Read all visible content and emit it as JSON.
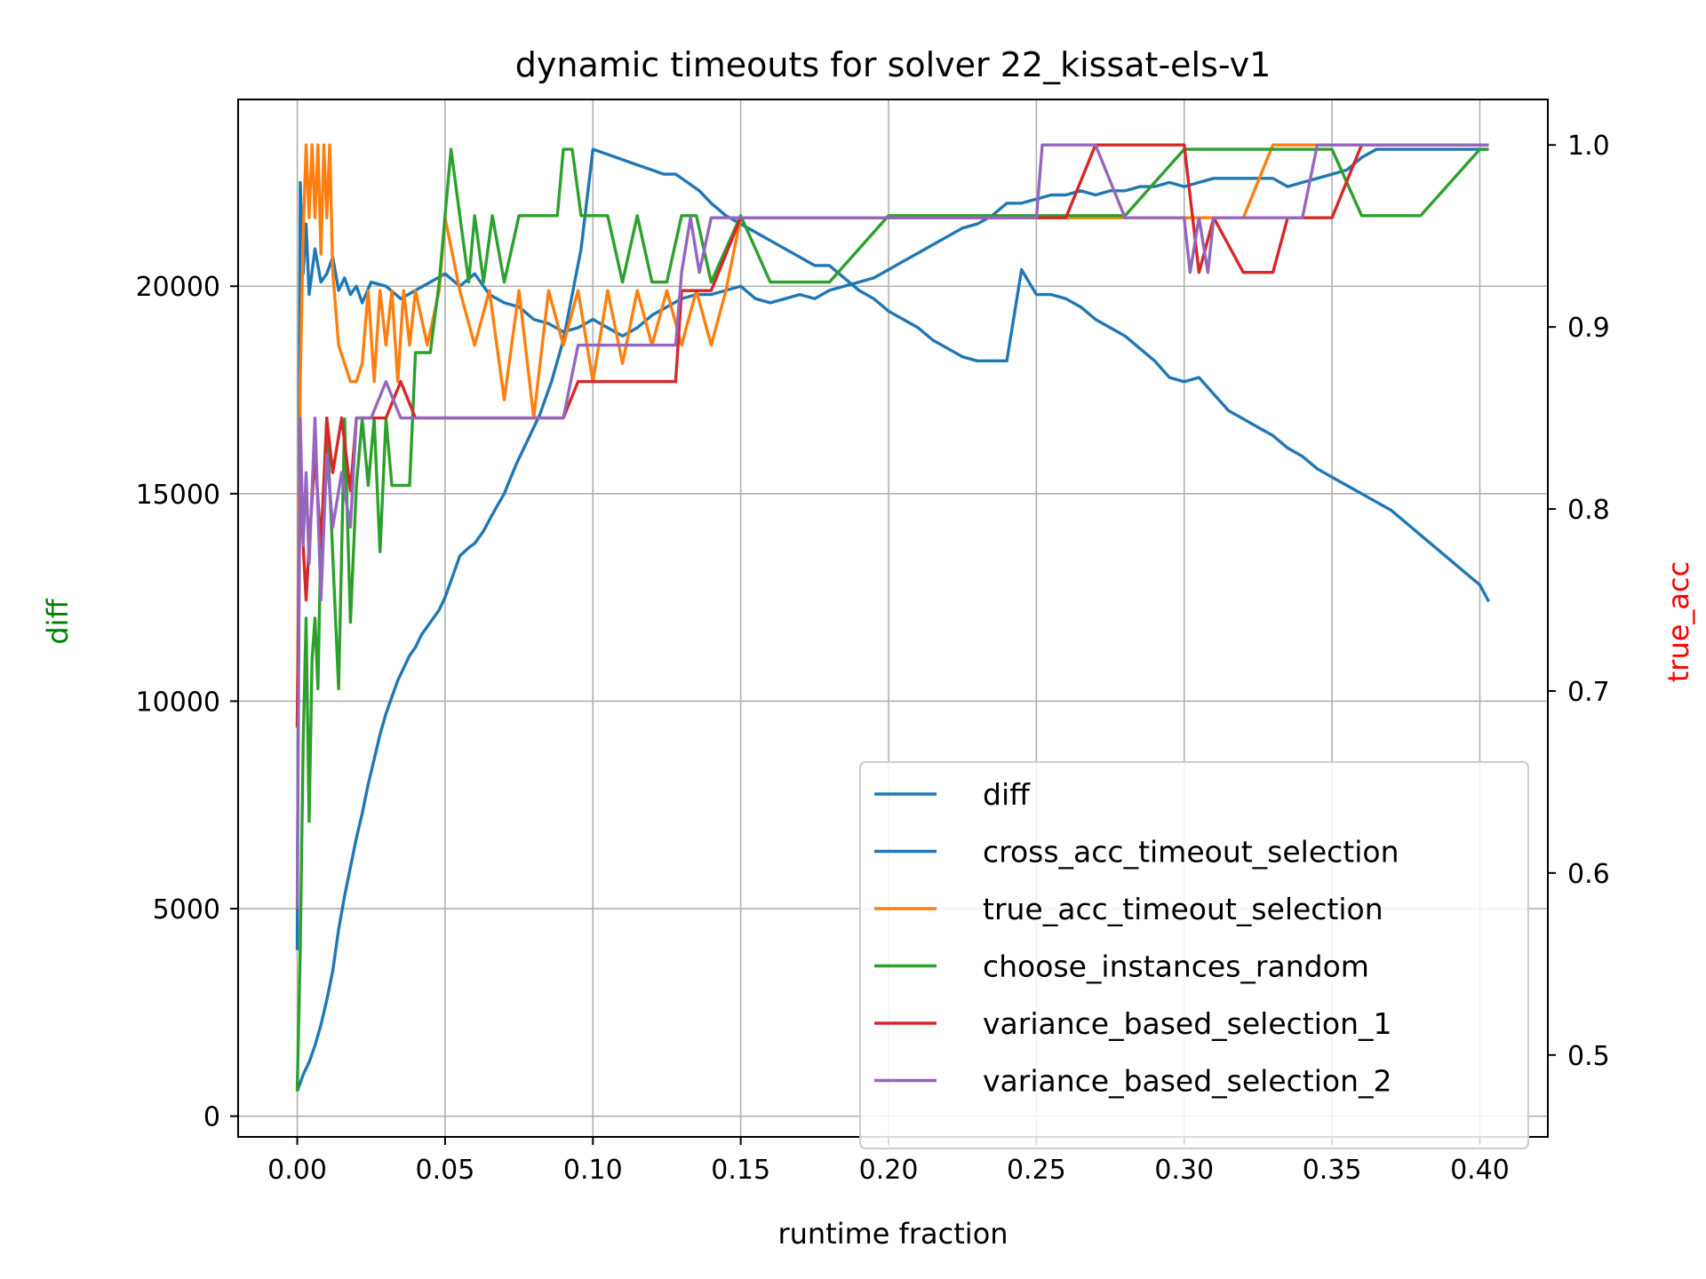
{
  "chart_data": {
    "type": "line",
    "title": "dynamic timeouts for solver 22_kissat-els-v1",
    "xlabel": "runtime fraction",
    "ylabel_left": "diff",
    "ylabel_right": "true_acc",
    "ylabel_left_color": "#008000",
    "ylabel_right_color": "#ff0000",
    "xlim": [
      -0.02,
      0.423
    ],
    "ylim_left": [
      -500,
      24500
    ],
    "ylim_right": [
      0.455,
      1.025
    ],
    "x_ticks": [
      0.0,
      0.05,
      0.1,
      0.15,
      0.2,
      0.25,
      0.3,
      0.35,
      0.4
    ],
    "x_tick_labels": [
      "0.00",
      "0.05",
      "0.10",
      "0.15",
      "0.20",
      "0.25",
      "0.30",
      "0.35",
      "0.40"
    ],
    "y_left_ticks": [
      0,
      5000,
      10000,
      15000,
      20000
    ],
    "y_left_tick_labels": [
      "0",
      "5000",
      "10000",
      "15000",
      "20000"
    ],
    "y_right_ticks": [
      0.5,
      0.6,
      0.7,
      0.8,
      0.9,
      1.0
    ],
    "y_right_tick_labels": [
      "0.5",
      "0.6",
      "0.7",
      "0.8",
      "0.9",
      "1.0"
    ],
    "grid": true,
    "legend_position": "lower-right",
    "series": [
      {
        "name": "diff",
        "axis": "left",
        "color": "#1f77b4",
        "x": [
          0.0,
          0.001,
          0.002,
          0.004,
          0.006,
          0.008,
          0.01,
          0.012,
          0.014,
          0.016,
          0.018,
          0.02,
          0.022,
          0.024,
          0.026,
          0.028,
          0.03,
          0.032,
          0.034,
          0.036,
          0.038,
          0.04,
          0.042,
          0.045,
          0.048,
          0.05,
          0.053,
          0.055,
          0.058,
          0.06,
          0.063,
          0.066,
          0.07,
          0.074,
          0.078,
          0.082,
          0.086,
          0.09,
          0.093,
          0.096,
          0.1,
          0.104,
          0.108,
          0.112,
          0.116,
          0.12,
          0.124,
          0.128,
          0.132,
          0.136,
          0.14,
          0.145,
          0.15,
          0.155,
          0.16,
          0.165,
          0.17,
          0.175,
          0.18,
          0.185,
          0.19,
          0.195,
          0.2,
          0.205,
          0.21,
          0.215,
          0.22,
          0.225,
          0.23,
          0.235,
          0.24,
          0.245,
          0.25,
          0.255,
          0.26,
          0.265,
          0.27,
          0.275,
          0.28,
          0.285,
          0.29,
          0.295,
          0.3,
          0.305,
          0.31,
          0.315,
          0.32,
          0.325,
          0.33,
          0.335,
          0.34,
          0.345,
          0.35,
          0.355,
          0.36,
          0.365,
          0.37,
          0.375,
          0.38,
          0.385,
          0.39,
          0.395,
          0.4,
          0.403
        ],
        "y": [
          600,
          800,
          1000,
          1300,
          1700,
          2200,
          2800,
          3500,
          4500,
          5300,
          6000,
          6700,
          7300,
          8000,
          8600,
          9200,
          9700,
          10100,
          10500,
          10800,
          11100,
          11300,
          11600,
          11900,
          12200,
          12500,
          13100,
          13500,
          13700,
          13800,
          14100,
          14500,
          15000,
          15700,
          16300,
          16900,
          17700,
          18700,
          19800,
          20900,
          23300,
          23200,
          23100,
          23000,
          22900,
          22800,
          22700,
          22700,
          22500,
          22300,
          22000,
          21700,
          21500,
          21300,
          21100,
          20900,
          20700,
          20500,
          20500,
          20200,
          19900,
          19700,
          19400,
          19200,
          19000,
          18700,
          18500,
          18300,
          18200,
          18200,
          18200,
          20400,
          19800,
          19800,
          19700,
          19500,
          19200,
          19000,
          18800,
          18500,
          18200,
          17800,
          17700,
          17800,
          17400,
          17000,
          16800,
          16600,
          16400,
          16100,
          15900,
          15600,
          15400,
          15200,
          15000,
          14800,
          14600,
          14300,
          14000,
          13700,
          13400,
          13100,
          12800,
          12400
        ]
      },
      {
        "name": "cross_acc_timeout_selection",
        "axis": "left",
        "color": "#1f77b4",
        "x": [
          0.0,
          0.001,
          0.002,
          0.003,
          0.004,
          0.006,
          0.008,
          0.01,
          0.012,
          0.014,
          0.016,
          0.018,
          0.02,
          0.022,
          0.025,
          0.03,
          0.035,
          0.04,
          0.045,
          0.05,
          0.055,
          0.06,
          0.065,
          0.07,
          0.075,
          0.08,
          0.085,
          0.09,
          0.095,
          0.1,
          0.105,
          0.11,
          0.115,
          0.12,
          0.125,
          0.13,
          0.135,
          0.14,
          0.145,
          0.15,
          0.155,
          0.16,
          0.165,
          0.17,
          0.175,
          0.18,
          0.185,
          0.19,
          0.195,
          0.2,
          0.205,
          0.21,
          0.215,
          0.22,
          0.225,
          0.23,
          0.235,
          0.24,
          0.245,
          0.25,
          0.255,
          0.26,
          0.265,
          0.27,
          0.275,
          0.28,
          0.285,
          0.29,
          0.295,
          0.3,
          0.305,
          0.31,
          0.315,
          0.32,
          0.325,
          0.33,
          0.335,
          0.34,
          0.345,
          0.35,
          0.355,
          0.36,
          0.365,
          0.37,
          0.375,
          0.38,
          0.385,
          0.39,
          0.395,
          0.4,
          0.403
        ],
        "y": [
          4000,
          22500,
          20300,
          21500,
          19800,
          20900,
          20100,
          20300,
          20700,
          19900,
          20200,
          19800,
          20000,
          19600,
          20100,
          20000,
          19700,
          19900,
          20100,
          20300,
          20000,
          20300,
          19800,
          19600,
          19500,
          19200,
          19100,
          18900,
          19000,
          19200,
          19000,
          18800,
          19000,
          19300,
          19500,
          19700,
          19800,
          19800,
          19900,
          20000,
          19700,
          19600,
          19700,
          19800,
          19700,
          19900,
          20000,
          20100,
          20200,
          20400,
          20600,
          20800,
          21000,
          21200,
          21400,
          21500,
          21700,
          22000,
          22000,
          22100,
          22200,
          22200,
          22300,
          22200,
          22300,
          22300,
          22400,
          22400,
          22500,
          22400,
          22500,
          22600,
          22600,
          22600,
          22600,
          22600,
          22400,
          22500,
          22600,
          22700,
          22800,
          23100,
          23300,
          23300,
          23300,
          23300,
          23300,
          23300,
          23300,
          23300,
          23300
        ]
      },
      {
        "name": "true_acc_timeout_selection",
        "axis": "right",
        "color": "#ff7f0e",
        "x": [
          0.0,
          0.001,
          0.002,
          0.003,
          0.004,
          0.005,
          0.006,
          0.007,
          0.008,
          0.009,
          0.01,
          0.011,
          0.012,
          0.014,
          0.016,
          0.018,
          0.02,
          0.022,
          0.024,
          0.026,
          0.028,
          0.03,
          0.032,
          0.034,
          0.036,
          0.038,
          0.04,
          0.044,
          0.048,
          0.05,
          0.055,
          0.06,
          0.065,
          0.07,
          0.075,
          0.08,
          0.085,
          0.09,
          0.095,
          0.1,
          0.105,
          0.11,
          0.115,
          0.12,
          0.125,
          0.13,
          0.135,
          0.14,
          0.145,
          0.15,
          0.16,
          0.17,
          0.18,
          0.19,
          0.2,
          0.22,
          0.25,
          0.28,
          0.3,
          0.32,
          0.33,
          0.34,
          0.35,
          0.36,
          0.38,
          0.4,
          0.403
        ],
        "y": [
          0.68,
          0.87,
          0.95,
          1.0,
          0.96,
          1.0,
          0.96,
          1.0,
          0.94,
          1.0,
          0.96,
          1.0,
          0.93,
          0.89,
          0.88,
          0.87,
          0.87,
          0.88,
          0.92,
          0.87,
          0.92,
          0.89,
          0.92,
          0.87,
          0.92,
          0.89,
          0.92,
          0.89,
          0.92,
          0.96,
          0.92,
          0.89,
          0.92,
          0.86,
          0.92,
          0.85,
          0.92,
          0.89,
          0.92,
          0.87,
          0.92,
          0.88,
          0.92,
          0.89,
          0.92,
          0.89,
          0.92,
          0.89,
          0.92,
          0.96,
          0.96,
          0.96,
          0.96,
          0.96,
          0.96,
          0.96,
          0.96,
          0.96,
          0.96,
          0.96,
          1.0,
          1.0,
          1.0,
          1.0,
          1.0,
          1.0,
          1.0
        ]
      },
      {
        "name": "choose_instances_random",
        "axis": "left",
        "color": "#2ca02c",
        "x": [
          0.0,
          0.001,
          0.002,
          0.003,
          0.004,
          0.005,
          0.006,
          0.007,
          0.008,
          0.009,
          0.01,
          0.012,
          0.014,
          0.016,
          0.018,
          0.02,
          0.022,
          0.024,
          0.026,
          0.028,
          0.03,
          0.032,
          0.035,
          0.038,
          0.04,
          0.042,
          0.045,
          0.048,
          0.05,
          0.052,
          0.055,
          0.058,
          0.06,
          0.063,
          0.066,
          0.07,
          0.075,
          0.08,
          0.085,
          0.088,
          0.09,
          0.093,
          0.096,
          0.1,
          0.105,
          0.11,
          0.115,
          0.12,
          0.125,
          0.13,
          0.135,
          0.14,
          0.15,
          0.16,
          0.17,
          0.18,
          0.2,
          0.22,
          0.25,
          0.28,
          0.3,
          0.32,
          0.35,
          0.36,
          0.38,
          0.4,
          0.403
        ],
        "y": [
          600,
          4000,
          9000,
          12000,
          7100,
          11000,
          12000,
          10300,
          14000,
          15000,
          16800,
          13500,
          10300,
          16800,
          11900,
          15200,
          16800,
          15200,
          16800,
          13600,
          16800,
          15200,
          15200,
          15200,
          18400,
          18400,
          18400,
          20100,
          21700,
          23300,
          21700,
          20100,
          21700,
          20100,
          21700,
          20100,
          21700,
          21700,
          21700,
          21700,
          23300,
          23300,
          21700,
          21700,
          21700,
          20100,
          21700,
          20100,
          20100,
          21700,
          21700,
          20100,
          21700,
          20100,
          20100,
          20100,
          21700,
          21700,
          21700,
          21700,
          23300,
          23300,
          23300,
          21700,
          21700,
          23300,
          23300
        ]
      },
      {
        "name": "variance_based_selection_1",
        "axis": "right",
        "color": "#d62728",
        "x": [
          0.0,
          0.001,
          0.002,
          0.003,
          0.004,
          0.006,
          0.008,
          0.01,
          0.012,
          0.015,
          0.018,
          0.02,
          0.025,
          0.03,
          0.035,
          0.04,
          0.045,
          0.05,
          0.06,
          0.07,
          0.08,
          0.09,
          0.095,
          0.1,
          0.11,
          0.12,
          0.128,
          0.13,
          0.14,
          0.15,
          0.16,
          0.18,
          0.2,
          0.25,
          0.26,
          0.27,
          0.28,
          0.29,
          0.3,
          0.305,
          0.31,
          0.32,
          0.33,
          0.335,
          0.34,
          0.35,
          0.36,
          0.38,
          0.4,
          0.403
        ],
        "y": [
          0.68,
          0.82,
          0.78,
          0.75,
          0.78,
          0.83,
          0.78,
          0.85,
          0.82,
          0.85,
          0.81,
          0.85,
          0.85,
          0.85,
          0.87,
          0.85,
          0.85,
          0.85,
          0.85,
          0.85,
          0.85,
          0.85,
          0.87,
          0.87,
          0.87,
          0.87,
          0.87,
          0.92,
          0.92,
          0.96,
          0.96,
          0.96,
          0.96,
          0.96,
          0.96,
          1.0,
          1.0,
          1.0,
          1.0,
          0.93,
          0.96,
          0.93,
          0.93,
          0.96,
          0.96,
          0.96,
          1.0,
          1.0,
          1.0,
          1.0
        ]
      },
      {
        "name": "variance_based_selection_2",
        "axis": "right",
        "color": "#9467bd",
        "x": [
          0.0,
          0.001,
          0.002,
          0.003,
          0.004,
          0.006,
          0.008,
          0.01,
          0.012,
          0.015,
          0.018,
          0.02,
          0.025,
          0.03,
          0.035,
          0.04,
          0.05,
          0.06,
          0.07,
          0.08,
          0.09,
          0.095,
          0.1,
          0.11,
          0.12,
          0.128,
          0.13,
          0.133,
          0.136,
          0.14,
          0.15,
          0.2,
          0.25,
          0.252,
          0.26,
          0.27,
          0.28,
          0.29,
          0.3,
          0.302,
          0.305,
          0.308,
          0.31,
          0.32,
          0.34,
          0.345,
          0.36,
          0.38,
          0.4,
          0.403
        ],
        "y": [
          0.58,
          0.85,
          0.78,
          0.82,
          0.77,
          0.85,
          0.75,
          0.83,
          0.79,
          0.82,
          0.79,
          0.85,
          0.85,
          0.87,
          0.85,
          0.85,
          0.85,
          0.85,
          0.85,
          0.85,
          0.85,
          0.89,
          0.89,
          0.89,
          0.89,
          0.89,
          0.93,
          0.96,
          0.93,
          0.96,
          0.96,
          0.96,
          0.96,
          1.0,
          1.0,
          1.0,
          0.96,
          0.96,
          0.96,
          0.93,
          0.96,
          0.93,
          0.96,
          0.96,
          0.96,
          1.0,
          1.0,
          1.0,
          1.0,
          1.0
        ]
      }
    ]
  }
}
